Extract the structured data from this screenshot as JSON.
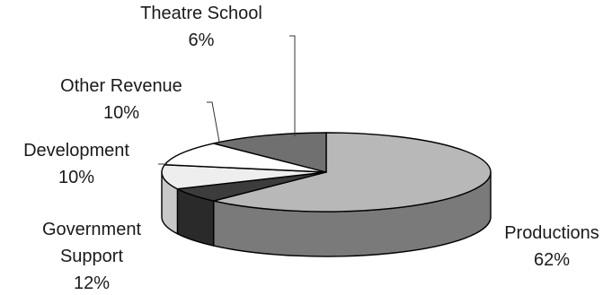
{
  "chart_data": {
    "type": "pie",
    "three_d": true,
    "legend": "none",
    "slices": [
      {
        "label": "Productions",
        "value": 62,
        "value_label": "62%",
        "color": "#b8b8b8",
        "side_color": "#7a7a7a"
      },
      {
        "label": "Theatre School",
        "value": 6,
        "value_label": "6%",
        "color": "#3c3c3c",
        "side_color": "#2a2a2a"
      },
      {
        "label": "Other Revenue",
        "value": 10,
        "value_label": "10%",
        "color": "#eeeeee",
        "side_color": "#c8c8c8"
      },
      {
        "label": "Development",
        "value": 10,
        "value_label": "10%",
        "color": "#ffffff",
        "side_color": "#e0e0e0"
      },
      {
        "label": "Government Support",
        "label_lines": [
          "Government",
          "Support"
        ],
        "value": 12,
        "value_label": "12%",
        "color": "#707070",
        "side_color": "#484848"
      }
    ]
  }
}
